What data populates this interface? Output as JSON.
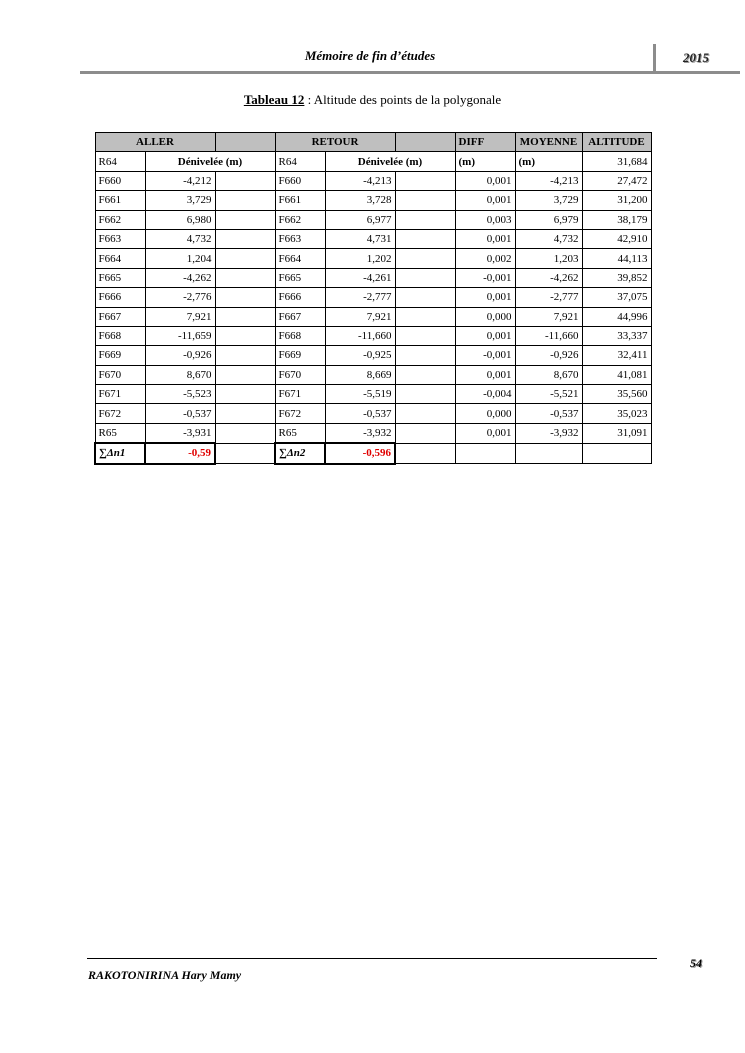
{
  "header": {
    "title": "Mémoire de fin d’études",
    "year": "2015"
  },
  "caption": {
    "label": "Tableau 12",
    "text": " : Altitude des points de la polygonale"
  },
  "table": {
    "group_headers": {
      "aller": "ALLER",
      "retour": "RETOUR",
      "diff": "DIFF",
      "moyenne": "MOYENNE",
      "altitude": "ALTITUDE"
    },
    "subheader": {
      "start_aller": "R64",
      "denivelee_aller": "Dénivelée (m)",
      "start_retour": "R64",
      "denivelee_retour": "Dénivelée (m)",
      "diff_unit": "(m)",
      "moyenne_unit": "(m)",
      "altitude": "31,684"
    },
    "rows": [
      {
        "pa": "F660",
        "da": "-4,212",
        "pr": "F660",
        "dr": "-4,213",
        "diff": "0,001",
        "moy": "-4,213",
        "alt": "27,472"
      },
      {
        "pa": "F661",
        "da": "3,729",
        "pr": "F661",
        "dr": "3,728",
        "diff": "0,001",
        "moy": "3,729",
        "alt": "31,200"
      },
      {
        "pa": "F662",
        "da": "6,980",
        "pr": "F662",
        "dr": "6,977",
        "diff": "0,003",
        "moy": "6,979",
        "alt": "38,179"
      },
      {
        "pa": "F663",
        "da": "4,732",
        "pr": "F663",
        "dr": "4,731",
        "diff": "0,001",
        "moy": "4,732",
        "alt": "42,910"
      },
      {
        "pa": "F664",
        "da": "1,204",
        "pr": "F664",
        "dr": "1,202",
        "diff": "0,002",
        "moy": "1,203",
        "alt": "44,113"
      },
      {
        "pa": "F665",
        "da": "-4,262",
        "pr": "F665",
        "dr": "-4,261",
        "diff": "-0,001",
        "moy": "-4,262",
        "alt": "39,852"
      },
      {
        "pa": "F666",
        "da": "-2,776",
        "pr": "F666",
        "dr": "-2,777",
        "diff": "0,001",
        "moy": "-2,777",
        "alt": "37,075"
      },
      {
        "pa": "F667",
        "da": "7,921",
        "pr": "F667",
        "dr": "7,921",
        "diff": "0,000",
        "moy": "7,921",
        "alt": "44,996"
      },
      {
        "pa": "F668",
        "da": "-11,659",
        "pr": "F668",
        "dr": "-11,660",
        "diff": "0,001",
        "moy": "-11,660",
        "alt": "33,337"
      },
      {
        "pa": "F669",
        "da": "-0,926",
        "pr": "F669",
        "dr": "-0,925",
        "diff": "-0,001",
        "moy": "-0,926",
        "alt": "32,411"
      },
      {
        "pa": "F670",
        "da": "8,670",
        "pr": "F670",
        "dr": "8,669",
        "diff": "0,001",
        "moy": "8,670",
        "alt": "41,081"
      },
      {
        "pa": "F671",
        "da": "-5,523",
        "pr": "F671",
        "dr": "-5,519",
        "diff": "-0,004",
        "moy": "-5,521",
        "alt": "35,560"
      },
      {
        "pa": "F672",
        "da": "-0,537",
        "pr": "F672",
        "dr": "-0,537",
        "diff": "0,000",
        "moy": "-0,537",
        "alt": "35,023"
      },
      {
        "pa": "R65",
        "da": "-3,931",
        "pr": "R65",
        "dr": "-3,932",
        "diff": "0,001",
        "moy": "-3,932",
        "alt": "31,091"
      }
    ],
    "sum": {
      "label1": "∑Δn1",
      "value1": "-0,59",
      "label2": "∑Δn2",
      "value2": "-0,596"
    },
    "highlight_color": "#e00000"
  },
  "footer": {
    "page": "54",
    "author": "RAKOTONIRINA Hary Mamy"
  }
}
